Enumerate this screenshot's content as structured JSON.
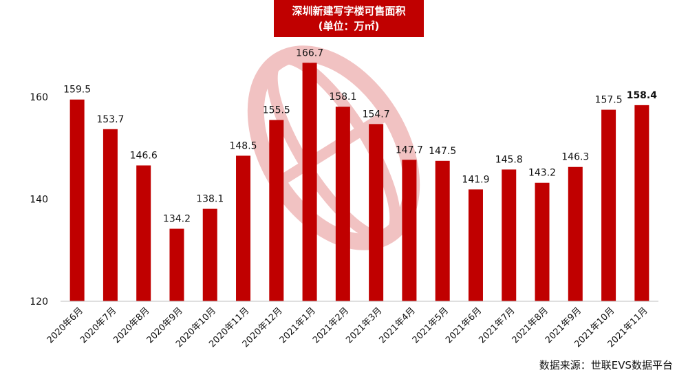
{
  "chart_data": {
    "type": "bar",
    "title": "深圳新建写字楼可售面积",
    "subtitle": "(单位：万㎡)",
    "categories": [
      "2020年6月",
      "2020年7月",
      "2020年8月",
      "2020年9月",
      "2020年10月",
      "2020年11月",
      "2020年12月",
      "2021年1月",
      "2021年2月",
      "2021年3月",
      "2021年4月",
      "2021年5月",
      "2021年6月",
      "2021年7月",
      "2021年8月",
      "2021年9月",
      "2021年10月",
      "2021年11月"
    ],
    "values": [
      159.5,
      153.7,
      146.6,
      134.2,
      138.1,
      148.5,
      155.5,
      166.7,
      158.1,
      154.7,
      147.7,
      147.5,
      141.9,
      145.8,
      143.2,
      146.3,
      157.5,
      158.4
    ],
    "value_labels": [
      "159.5",
      "153.7",
      "146.6",
      "134.2",
      "138.1",
      "148.5",
      "155.5",
      "166.7",
      "158.1",
      "154.7",
      "147.7",
      "147.5",
      "141.9",
      "145.8",
      "143.2",
      "146.3",
      "157.5",
      "158.4"
    ],
    "highlight_index": 17,
    "ylim": [
      120,
      170
    ],
    "yticks": [
      120,
      140,
      160
    ],
    "ytick_labels": [
      "120",
      "140",
      "160"
    ],
    "bar_color": "#c00000",
    "grid": false,
    "legend": "none"
  },
  "source": "数据来源：世联EVS数据平台"
}
